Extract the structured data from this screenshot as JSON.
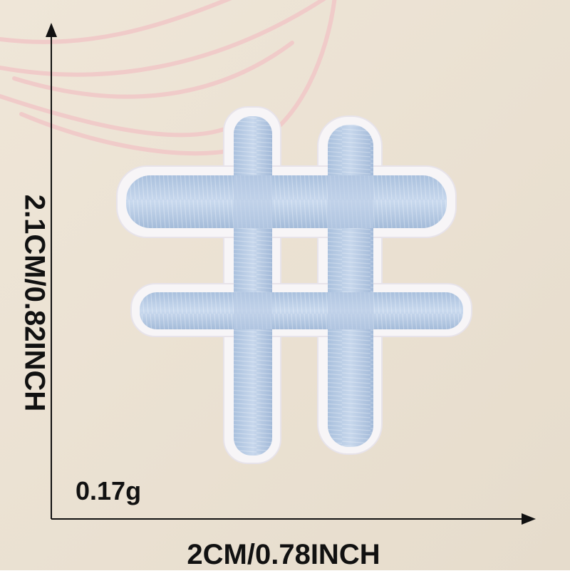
{
  "measurements": {
    "height_label": "2.1CM/0.82INCH",
    "width_label": "2CM/0.78INCH",
    "weight_label": "0.17g"
  },
  "subject": {
    "icon": "hashtag-patch-icon",
    "thread_color": "#b7cce6",
    "backing_color": "#f6f4f6",
    "background_color": "#ece3d5",
    "string_color": "#f3cfcf"
  }
}
